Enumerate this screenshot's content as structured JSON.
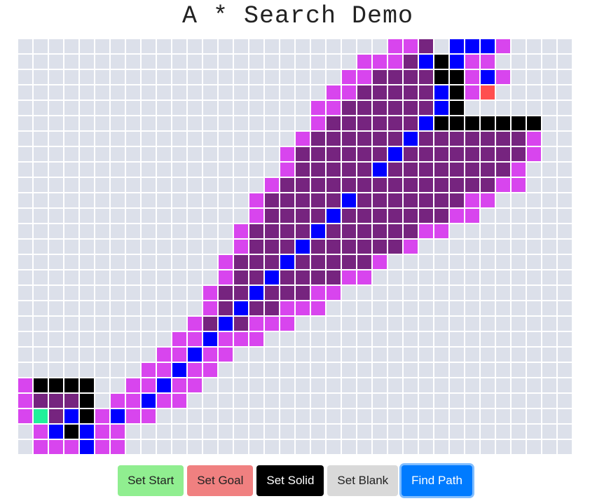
{
  "title": "A * Search Demo",
  "colors": {
    "blank": "#dce0ea",
    "solid": "#000000",
    "path": "#0000ff",
    "open": "#d845ee",
    "closed": "#76247f",
    "start": "#21f19a",
    "goal": "#ff4f4f"
  },
  "grid": {
    "rows": [
      "........................MMC.PPPM.......",
      "......................MMMCPBPMM........",
      ".....................MMCCCCBBMPM.......",
      "....................MMCCCCCPBMG........",
      "...................MMCCCCCCPB..........",
      "...................MCCCCCCPBBBBBBB.....",
      "..................MCCCCCCPCCCCCCCM.....",
      ".................MCCCCCCPCCCCCCCCM.....",
      ".................MCCCCCPCCCCCCCCM......",
      "................MCCCCCCCCCCCCCCMM......",
      "...............MCCCCCPCCCCCCCMM........",
      "...............MCCCCPCCCCCCCMM.........",
      "..............MCCCCPCCCCCCMM...........",
      "..............MCCCPCCCCCCM.............",
      ".............MCCCPCCCCCM...............",
      ".............MCCPCCCCMM................",
      "............MCCPCCCMM..................",
      "............MCPCCMMM...................",
      "...........MCPCMMM.....................",
      "..........MMPMMM.......................",
      ".........MMPMM.........................",
      "........MMPMM..........................",
      "MBBBB..MMPMM...........................",
      "MCCCB.MMPMM............................",
      "MSCPBMPMM..............................",
      ".MPBPMM................................",
      ".MMMPMM................................"
    ]
  },
  "toolbar": {
    "buttons": [
      {
        "label": "Set Start",
        "bg": "#90ee90",
        "fg": "#222222",
        "selected": false
      },
      {
        "label": "Set Goal",
        "bg": "#f08080",
        "fg": "#222222",
        "selected": false
      },
      {
        "label": "Set Solid",
        "bg": "#000000",
        "fg": "#ffffff",
        "selected": false
      },
      {
        "label": "Set Blank",
        "bg": "#d9d9d9",
        "fg": "#222222",
        "selected": false
      },
      {
        "label": "Find Path",
        "bg": "#007bff",
        "fg": "#ffffff",
        "selected": true
      }
    ]
  }
}
